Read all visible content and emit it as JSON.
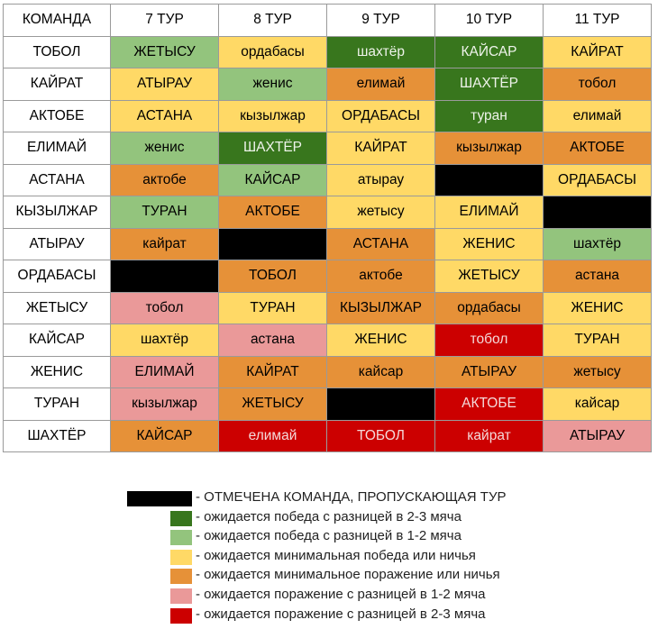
{
  "header": [
    "КОМАНДА",
    "7 ТУР",
    "8 ТУР",
    "9 ТУР",
    "10 ТУР",
    "11 ТУР"
  ],
  "rows": [
    {
      "team": "ТОБОЛ",
      "cells": [
        {
          "t": "ЖЕТЫСУ",
          "c": "lg"
        },
        {
          "t": "ордабасы",
          "c": "y"
        },
        {
          "t": "шахтёр",
          "c": "dg"
        },
        {
          "t": "КАЙСАР",
          "c": "dg"
        },
        {
          "t": "КАЙРАТ",
          "c": "y"
        }
      ]
    },
    {
      "team": "КАЙРАТ",
      "cells": [
        {
          "t": "АТЫРАУ",
          "c": "y"
        },
        {
          "t": "женис",
          "c": "lg"
        },
        {
          "t": "елимай",
          "c": "o"
        },
        {
          "t": "ШАХТЁР",
          "c": "dg"
        },
        {
          "t": "тобол",
          "c": "o"
        }
      ]
    },
    {
      "team": "АКТОБЕ",
      "cells": [
        {
          "t": "АСТАНА",
          "c": "y"
        },
        {
          "t": "кызылжар",
          "c": "y"
        },
        {
          "t": "ОРДАБАСЫ",
          "c": "y"
        },
        {
          "t": "туран",
          "c": "dg"
        },
        {
          "t": "елимай",
          "c": "y"
        }
      ]
    },
    {
      "team": "ЕЛИМАЙ",
      "cells": [
        {
          "t": "женис",
          "c": "lg"
        },
        {
          "t": "ШАХТЁР",
          "c": "dg"
        },
        {
          "t": "КАЙРАТ",
          "c": "y"
        },
        {
          "t": "кызылжар",
          "c": "o"
        },
        {
          "t": "АКТОБЕ",
          "c": "o"
        }
      ]
    },
    {
      "team": "АСТАНА",
      "cells": [
        {
          "t": "актобе",
          "c": "o"
        },
        {
          "t": "КАЙСАР",
          "c": "lg"
        },
        {
          "t": "атырау",
          "c": "y"
        },
        {
          "t": "",
          "c": "k"
        },
        {
          "t": "ОРДАБАСЫ",
          "c": "y"
        }
      ]
    },
    {
      "team": "КЫЗЫЛЖАР",
      "cells": [
        {
          "t": "ТУРАН",
          "c": "lg"
        },
        {
          "t": "АКТОБЕ",
          "c": "o"
        },
        {
          "t": "жетысу",
          "c": "y"
        },
        {
          "t": "ЕЛИМАЙ",
          "c": "y"
        },
        {
          "t": "",
          "c": "k"
        }
      ]
    },
    {
      "team": "АТЫРАУ",
      "cells": [
        {
          "t": "кайрат",
          "c": "o"
        },
        {
          "t": "",
          "c": "k"
        },
        {
          "t": "АСТАНА",
          "c": "o"
        },
        {
          "t": "ЖЕНИС",
          "c": "y"
        },
        {
          "t": "шахтёр",
          "c": "lg"
        }
      ]
    },
    {
      "team": "ОРДАБАСЫ",
      "cells": [
        {
          "t": "",
          "c": "k"
        },
        {
          "t": "ТОБОЛ",
          "c": "o"
        },
        {
          "t": "актобе",
          "c": "o"
        },
        {
          "t": "ЖЕТЫСУ",
          "c": "y"
        },
        {
          "t": "астана",
          "c": "o"
        }
      ]
    },
    {
      "team": "ЖЕТЫСУ",
      "cells": [
        {
          "t": "тобол",
          "c": "p"
        },
        {
          "t": "ТУРАН",
          "c": "y"
        },
        {
          "t": "КЫЗЫЛЖАР",
          "c": "o"
        },
        {
          "t": "ордабасы",
          "c": "o"
        },
        {
          "t": "ЖЕНИС",
          "c": "y"
        }
      ]
    },
    {
      "team": "КАЙСАР",
      "cells": [
        {
          "t": "шахтёр",
          "c": "y"
        },
        {
          "t": "астана",
          "c": "p"
        },
        {
          "t": "ЖЕНИС",
          "c": "y"
        },
        {
          "t": "тобол",
          "c": "r"
        },
        {
          "t": "ТУРАН",
          "c": "y"
        }
      ]
    },
    {
      "team": "ЖЕНИС",
      "cells": [
        {
          "t": "ЕЛИМАЙ",
          "c": "p"
        },
        {
          "t": "КАЙРАТ",
          "c": "o"
        },
        {
          "t": "кайсар",
          "c": "o"
        },
        {
          "t": "АТЫРАУ",
          "c": "o"
        },
        {
          "t": "жетысу",
          "c": "o"
        }
      ]
    },
    {
      "team": "ТУРАН",
      "cells": [
        {
          "t": "кызылжар",
          "c": "p"
        },
        {
          "t": "ЖЕТЫСУ",
          "c": "o"
        },
        {
          "t": "",
          "c": "k"
        },
        {
          "t": "АКТОБЕ",
          "c": "r"
        },
        {
          "t": "кайсар",
          "c": "y"
        }
      ]
    },
    {
      "team": "ШАХТЁР",
      "cells": [
        {
          "t": "КАЙСАР",
          "c": "o"
        },
        {
          "t": "елимай",
          "c": "r"
        },
        {
          "t": "ТОБОЛ",
          "c": "r"
        },
        {
          "t": "кайрат",
          "c": "r"
        },
        {
          "t": "АТЫРАУ",
          "c": "p"
        }
      ]
    }
  ],
  "legend": [
    {
      "c": "k",
      "text": "- ОТМЕЧЕНА КОМАНДА, ПРОПУСКАЮЩАЯ ТУР"
    },
    {
      "c": "dg",
      "text": "- ожидается победа с разницей в 2-3 мяча"
    },
    {
      "c": "lg",
      "text": "- ожидается победа с разницей в 1-2 мяча"
    },
    {
      "c": "y",
      "text": "- ожидается минимальная победа или ничья"
    },
    {
      "c": "o",
      "text": "- ожидается минимальное поражение или ничья"
    },
    {
      "c": "p",
      "text": "- ожидается поражение с разницей в 1-2 мяча"
    },
    {
      "c": "r",
      "text": "- ожидается поражение с разницей в 2-3 мяча"
    }
  ],
  "colors": {
    "dg": "#38761d",
    "lg": "#93c47d",
    "y": "#ffd966",
    "o": "#e69138",
    "p": "#ea9999",
    "r": "#cc0000",
    "k": "#000000"
  }
}
